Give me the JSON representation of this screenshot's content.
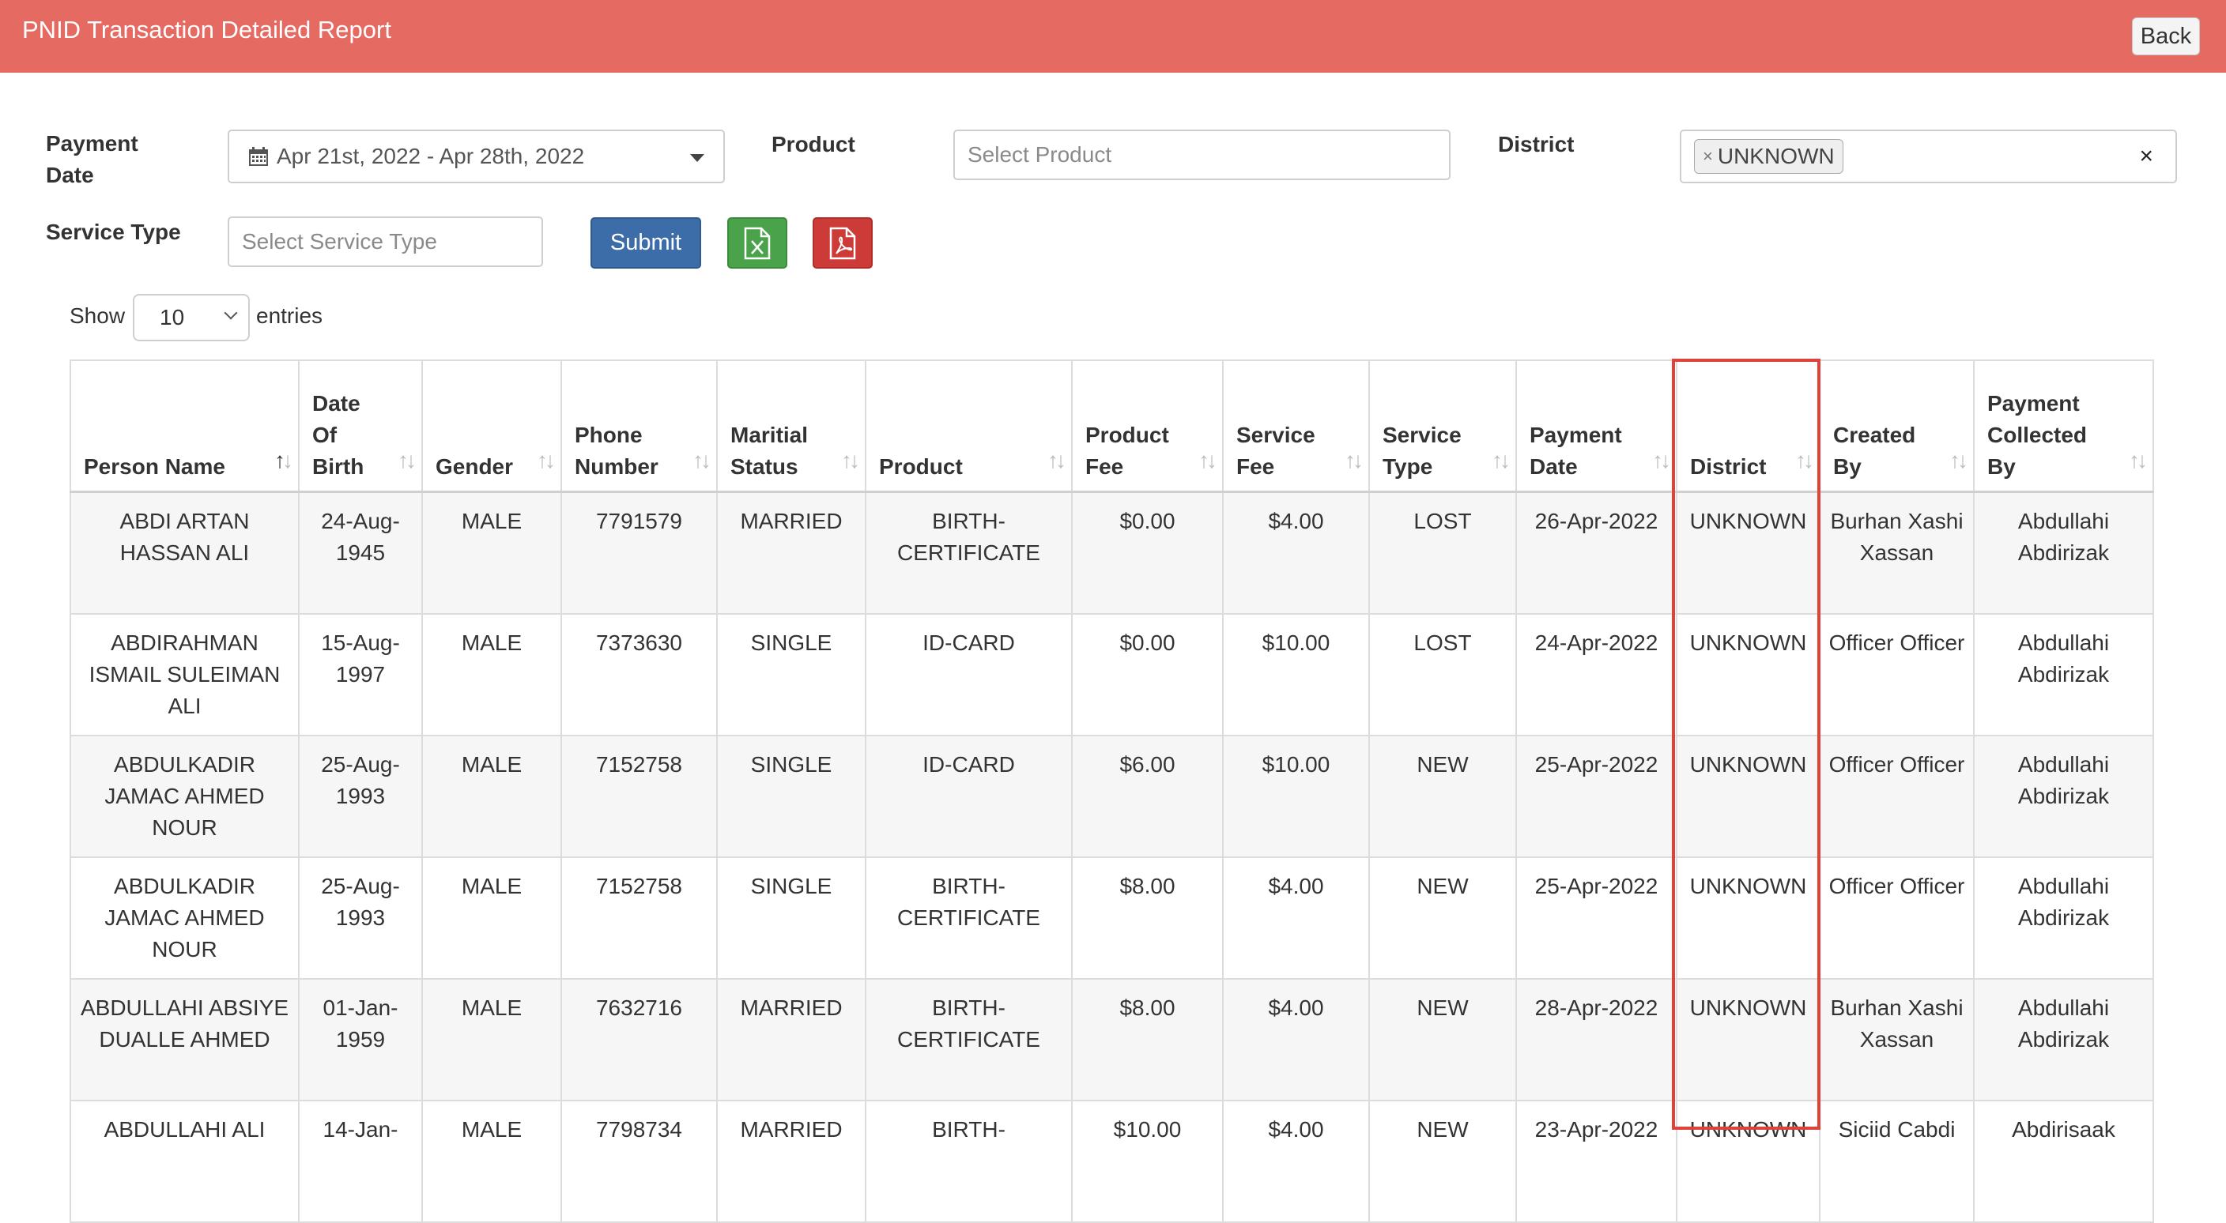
{
  "header": {
    "title": "PNID Transaction Detailed Report",
    "back_label": "Back"
  },
  "filters": {
    "payment_date_label": "Payment Date",
    "payment_date_value": "Apr 21st, 2022 - Apr 28th, 2022",
    "product_label": "Product",
    "product_placeholder": "Select Product",
    "district_label": "District",
    "district_tag": "UNKNOWN",
    "clear_symbol": "×",
    "service_type_label": "Service Type",
    "service_type_placeholder": "Select Service Type",
    "submit_label": "Submit",
    "excel_icon": "excel-export-icon",
    "pdf_icon": "pdf-export-icon"
  },
  "length": {
    "show_label": "Show",
    "value": "10",
    "entries_label": "entries"
  },
  "table": {
    "columns": [
      "Person Name",
      "Date Of Birth",
      "Gender",
      "Phone Number",
      "Maritial Status",
      "Product",
      "Product Fee",
      "Service Fee",
      "Service Type",
      "Payment Date",
      "District",
      "Created By",
      "Payment Collected By"
    ],
    "rows": [
      [
        "ABDI ARTAN HASSAN ALI",
        "24-Aug-1945",
        "MALE",
        "7791579",
        "MARRIED",
        "BIRTH-CERTIFICATE",
        "$0.00",
        "$4.00",
        "LOST",
        "26-Apr-2022",
        "UNKNOWN",
        "Burhan Xashi Xassan",
        "Abdullahi Abdirizak"
      ],
      [
        "ABDIRAHMAN ISMAIL SULEIMAN ALI",
        "15-Aug-1997",
        "MALE",
        "7373630",
        "SINGLE",
        "ID-CARD",
        "$0.00",
        "$10.00",
        "LOST",
        "24-Apr-2022",
        "UNKNOWN",
        "Officer Officer",
        "Abdullahi Abdirizak"
      ],
      [
        "ABDULKADIR JAMAC AHMED NOUR",
        "25-Aug-1993",
        "MALE",
        "7152758",
        "SINGLE",
        "ID-CARD",
        "$6.00",
        "$10.00",
        "NEW",
        "25-Apr-2022",
        "UNKNOWN",
        "Officer Officer",
        "Abdullahi Abdirizak"
      ],
      [
        "ABDULKADIR JAMAC AHMED NOUR",
        "25-Aug-1993",
        "MALE",
        "7152758",
        "SINGLE",
        "BIRTH-CERTIFICATE",
        "$8.00",
        "$4.00",
        "NEW",
        "25-Apr-2022",
        "UNKNOWN",
        "Officer Officer",
        "Abdullahi Abdirizak"
      ],
      [
        "ABDULLAHI ABSIYE DUALLE AHMED",
        "01-Jan-1959",
        "MALE",
        "7632716",
        "MARRIED",
        "BIRTH-CERTIFICATE",
        "$8.00",
        "$4.00",
        "NEW",
        "28-Apr-2022",
        "UNKNOWN",
        "Burhan Xashi Xassan",
        "Abdullahi Abdirizak"
      ],
      [
        "ABDULLAHI ALI",
        "14-Jan-",
        "MALE",
        "7798734",
        "MARRIED",
        "BIRTH-",
        "$10.00",
        "$4.00",
        "NEW",
        "23-Apr-2022",
        "UNKNOWN",
        "Siciid Cabdi",
        "Abdirisaak"
      ]
    ]
  },
  "colors": {
    "header_bg": "#e46a62",
    "highlight": "#e0423a",
    "submit": "#3d6da8",
    "excel": "#4aa24a",
    "pdf": "#cc3b37"
  }
}
